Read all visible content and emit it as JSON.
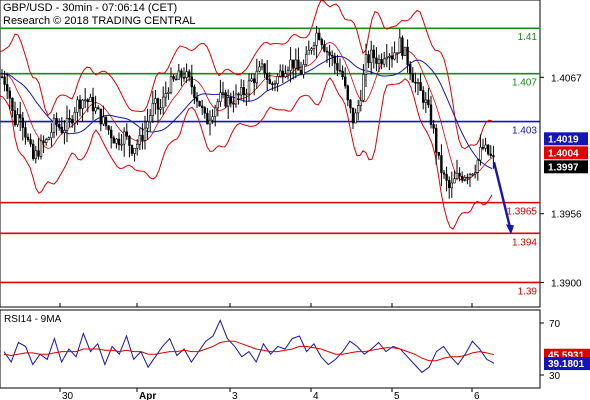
{
  "header": {
    "title": "GBP/USD - 30min - 07:06:14 (CET)",
    "credit": "Research © 2018 TRADING CENTRAL"
  },
  "chart_data": [
    {
      "type": "candlestick",
      "title": "GBP/USD - 30min - 07:06:14 (CET)",
      "ylim": [
        1.388,
        1.413
      ],
      "y_ticks": [
        "1.4067",
        "1.4019",
        "1.4004",
        "1.3997",
        "1.3956",
        "1.3900"
      ],
      "x_ticks": [
        "30",
        "Apr",
        "3",
        "4",
        "5",
        "6"
      ],
      "grid": false,
      "current_price_tags": [
        {
          "label": "1.4019",
          "value": 1.4019,
          "color": "#1515b4"
        },
        {
          "label": "1.4004",
          "value": 1.4004,
          "color": "#e00000"
        },
        {
          "label": "1.3997",
          "value": 1.3997,
          "color": "#000000"
        }
      ],
      "levels": [
        {
          "label": "1.41",
          "value": 1.4107,
          "color": "#1a8a1a",
          "kind": "resistance"
        },
        {
          "label": "1.407",
          "value": 1.407,
          "color": "#1a8a1a",
          "kind": "resistance"
        },
        {
          "label": "1.403",
          "value": 1.4031,
          "color": "#1515b4",
          "kind": "pivot"
        },
        {
          "label": "1.3965",
          "value": 1.3965,
          "color": "#e00000",
          "kind": "support"
        },
        {
          "label": "1.394",
          "value": 1.394,
          "color": "#e00000",
          "kind": "support"
        },
        {
          "label": "1.39",
          "value": 1.39,
          "color": "#e00000",
          "kind": "support"
        }
      ],
      "price_path": [
        [
          0,
          1.407
        ],
        [
          8,
          1.406
        ],
        [
          14,
          1.403
        ],
        [
          20,
          1.404
        ],
        [
          26,
          1.402
        ],
        [
          33,
          1.4
        ],
        [
          40,
          1.401
        ],
        [
          47,
          1.4015
        ],
        [
          55,
          1.403
        ],
        [
          62,
          1.4025
        ],
        [
          70,
          1.403
        ],
        [
          76,
          1.4045
        ],
        [
          84,
          1.405
        ],
        [
          92,
          1.4045
        ],
        [
          100,
          1.4035
        ],
        [
          108,
          1.4025
        ],
        [
          116,
          1.4015
        ],
        [
          124,
          1.402
        ],
        [
          132,
          1.401
        ],
        [
          140,
          1.4015
        ],
        [
          147,
          1.403
        ],
        [
          154,
          1.4045
        ],
        [
          160,
          1.404
        ],
        [
          168,
          1.406
        ],
        [
          176,
          1.4065
        ],
        [
          184,
          1.407
        ],
        [
          192,
          1.406
        ],
        [
          200,
          1.4045
        ],
        [
          206,
          1.403
        ],
        [
          212,
          1.404
        ],
        [
          220,
          1.405
        ],
        [
          228,
          1.4048
        ],
        [
          236,
          1.405
        ],
        [
          244,
          1.4055
        ],
        [
          252,
          1.4065
        ],
        [
          258,
          1.407
        ],
        [
          264,
          1.4075
        ],
        [
          270,
          1.406
        ],
        [
          276,
          1.4065
        ],
        [
          284,
          1.4075
        ],
        [
          292,
          1.408
        ],
        [
          300,
          1.407
        ],
        [
          306,
          1.408
        ],
        [
          312,
          1.4095
        ],
        [
          318,
          1.4105
        ],
        [
          326,
          1.409
        ],
        [
          334,
          1.408
        ],
        [
          342,
          1.407
        ],
        [
          348,
          1.4045
        ],
        [
          354,
          1.403
        ],
        [
          360,
          1.405
        ],
        [
          366,
          1.408
        ],
        [
          372,
          1.4085
        ],
        [
          380,
          1.408
        ],
        [
          386,
          1.409
        ],
        [
          392,
          1.4085
        ],
        [
          400,
          1.4095
        ],
        [
          408,
          1.408
        ],
        [
          416,
          1.406
        ],
        [
          424,
          1.405
        ],
        [
          432,
          1.403
        ],
        [
          438,
          1.4
        ],
        [
          444,
          1.3985
        ],
        [
          450,
          1.3975
        ],
        [
          456,
          1.3985
        ],
        [
          462,
          1.3988
        ],
        [
          470,
          1.399
        ],
        [
          476,
          1.3995
        ],
        [
          482,
          1.401
        ],
        [
          488,
          1.4005
        ],
        [
          494,
          1.3998
        ]
      ],
      "forecast_arrow": {
        "from": [
          494,
          1.3998
        ],
        "to": [
          510,
          1.394
        ],
        "color": "#1515b4"
      }
    },
    {
      "type": "line",
      "title": "RSI14 - 9MA",
      "ylim": [
        20,
        80
      ],
      "y_ticks": [
        "70",
        "45.5931",
        "39.1801",
        "30"
      ],
      "x_ticks": [
        "30",
        "Apr",
        "3",
        "4",
        "5",
        "6"
      ],
      "series": [
        {
          "name": "RSI14",
          "color": "#1515b4",
          "values": [
            48,
            40,
            55,
            52,
            38,
            46,
            42,
            58,
            40,
            50,
            44,
            62,
            48,
            54,
            38,
            52,
            46,
            60,
            42,
            48,
            36,
            44,
            52,
            58,
            45,
            50,
            40,
            48,
            56,
            60,
            72,
            58,
            52,
            44,
            48,
            40,
            54,
            46,
            52,
            50,
            58,
            60,
            48,
            54,
            44,
            38,
            42,
            48,
            56,
            52,
            46,
            50,
            55,
            48,
            52,
            50,
            44,
            38,
            32,
            36,
            48,
            52,
            44,
            38,
            46,
            56,
            50,
            42,
            39
          ]
        },
        {
          "name": "9MA",
          "color": "#e00000",
          "values": [
            46,
            45,
            46,
            47,
            47,
            46,
            46,
            47,
            48,
            48,
            48,
            50,
            50,
            50,
            49,
            49,
            48,
            49,
            48,
            48,
            46,
            46,
            47,
            48,
            48,
            49,
            48,
            48,
            50,
            52,
            55,
            56,
            56,
            54,
            52,
            50,
            49,
            48,
            48,
            49,
            50,
            52,
            52,
            51,
            50,
            48,
            46,
            46,
            47,
            48,
            48,
            49,
            50,
            51,
            51,
            50,
            48,
            46,
            43,
            41,
            41,
            43,
            44,
            44,
            45,
            47,
            48,
            47,
            45.6
          ]
        }
      ],
      "value_tags": [
        {
          "label": "45.5931",
          "value": 45.5931,
          "color": "#e00000"
        },
        {
          "label": "39.1801",
          "value": 39.1801,
          "color": "#1515b4"
        }
      ]
    }
  ]
}
